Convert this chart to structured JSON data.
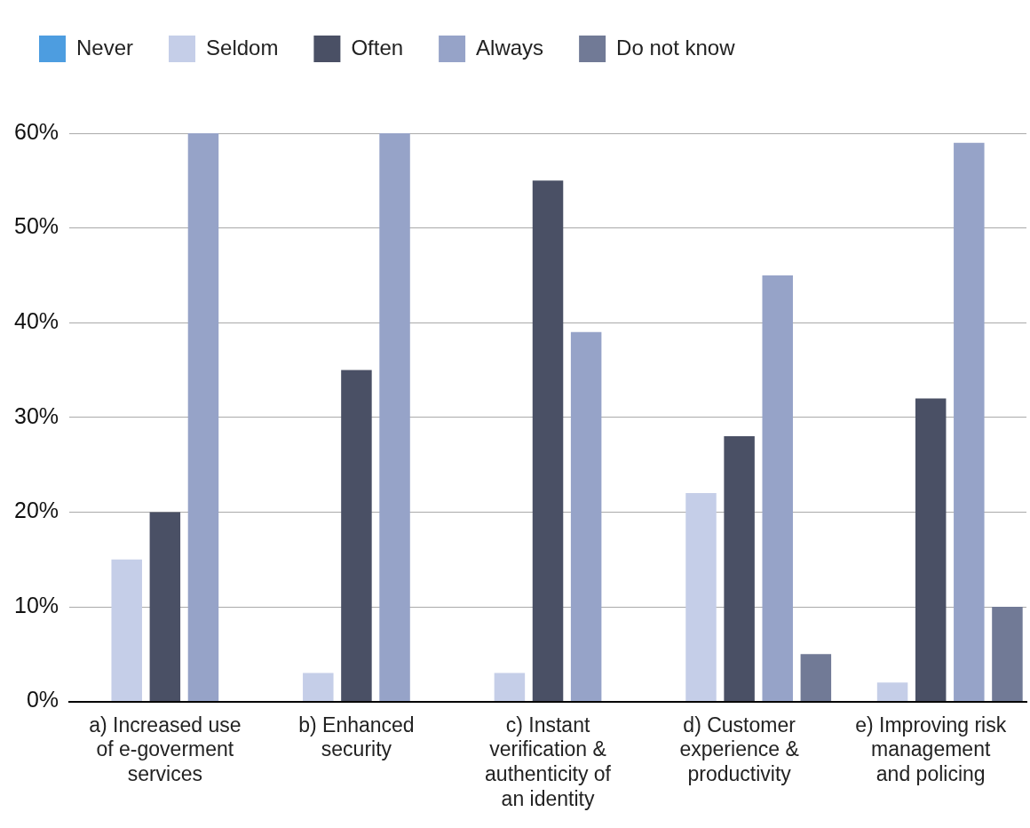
{
  "chart_data": {
    "type": "bar",
    "categories": [
      "a) Increased use of e-goverment services",
      "b) Enhanced security",
      "c) Instant verification & authenticity of an identity",
      "d) Customer experience & productivity",
      "e) Improving risk management and policing"
    ],
    "series": [
      {
        "name": "Never",
        "color": "#4d9de0",
        "values": [
          0,
          0,
          0,
          0,
          0
        ]
      },
      {
        "name": "Seldom",
        "color": "#c5cee8",
        "values": [
          15,
          3,
          3,
          22,
          2
        ]
      },
      {
        "name": "Often",
        "color": "#4a5065",
        "values": [
          20,
          35,
          55,
          28,
          32
        ]
      },
      {
        "name": "Always",
        "color": "#96a3c8",
        "values": [
          60,
          60,
          39,
          45,
          59
        ]
      },
      {
        "name": "Do not know",
        "color": "#717a96",
        "values": [
          0,
          0,
          0,
          5,
          10
        ]
      }
    ],
    "ylim": [
      0,
      60
    ],
    "yticks": [
      {
        "value": 0,
        "label": "0%"
      },
      {
        "value": 10,
        "label": "10%"
      },
      {
        "value": 20,
        "label": "20%"
      },
      {
        "value": 30,
        "label": "30%"
      },
      {
        "value": 40,
        "label": "40%"
      },
      {
        "value": 50,
        "label": "50%"
      },
      {
        "value": 60,
        "label": "60%"
      }
    ],
    "grid": "y",
    "legend": "top"
  }
}
